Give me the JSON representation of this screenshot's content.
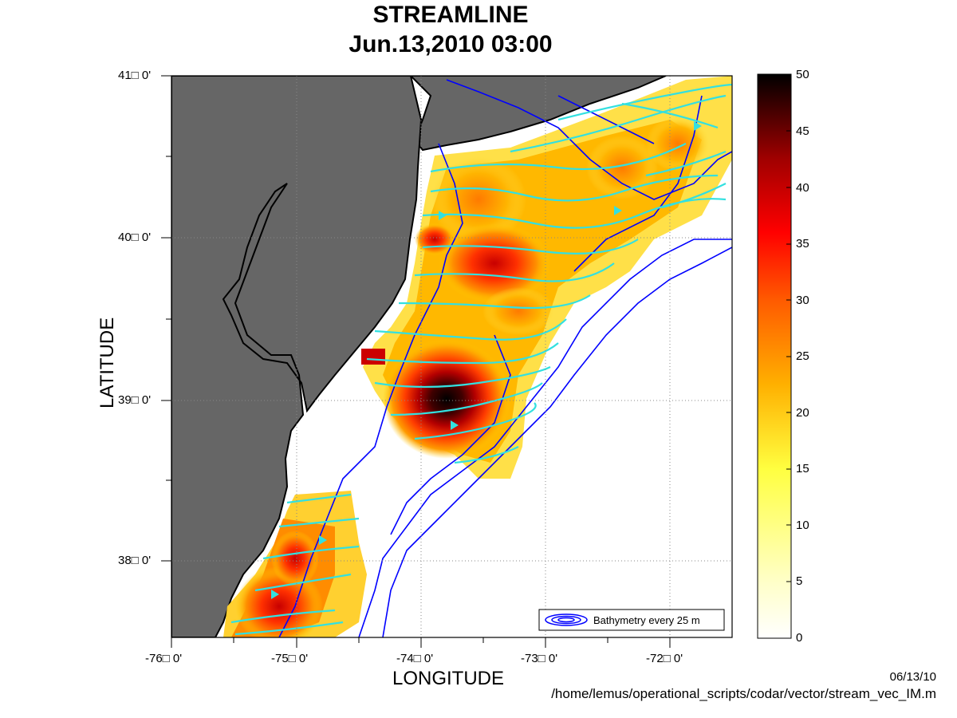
{
  "title": {
    "line1": "STREAMLINE",
    "line2": "Jun.13,2010 03:00"
  },
  "axes": {
    "xlabel": "LONGITUDE",
    "ylabel": "LATITUDE",
    "xticks": [
      "-76□ 0'",
      "-75□ 0'",
      "-74□ 0'",
      "-73□ 0'",
      "-72□ 0'"
    ],
    "yticks": [
      "41□ 0'",
      "40□ 0'",
      "39□ 0'",
      "38□ 0'"
    ],
    "lon_range": [
      -76.0,
      -71.5
    ],
    "lat_range": [
      37.5,
      41.0
    ],
    "grid": "dotted"
  },
  "colorbar": {
    "ticks": [
      "50",
      "45",
      "40",
      "35",
      "30",
      "25",
      "20",
      "15",
      "10",
      "5",
      "0"
    ],
    "range": [
      0,
      50
    ],
    "colormap": "hot-reversed"
  },
  "legend": {
    "label": "Bathymetry every 25 m",
    "placement": "bottom-right"
  },
  "footer": {
    "date": "06/13/10",
    "path": "/home/lemus/operational_scripts/codar/vector/stream_vec_IM.m"
  },
  "colors": {
    "land": "#666666",
    "coast": "#000000",
    "bathymetry": "#0000ff",
    "streamlines": "#33e0e0",
    "background": "#ffffff"
  }
}
